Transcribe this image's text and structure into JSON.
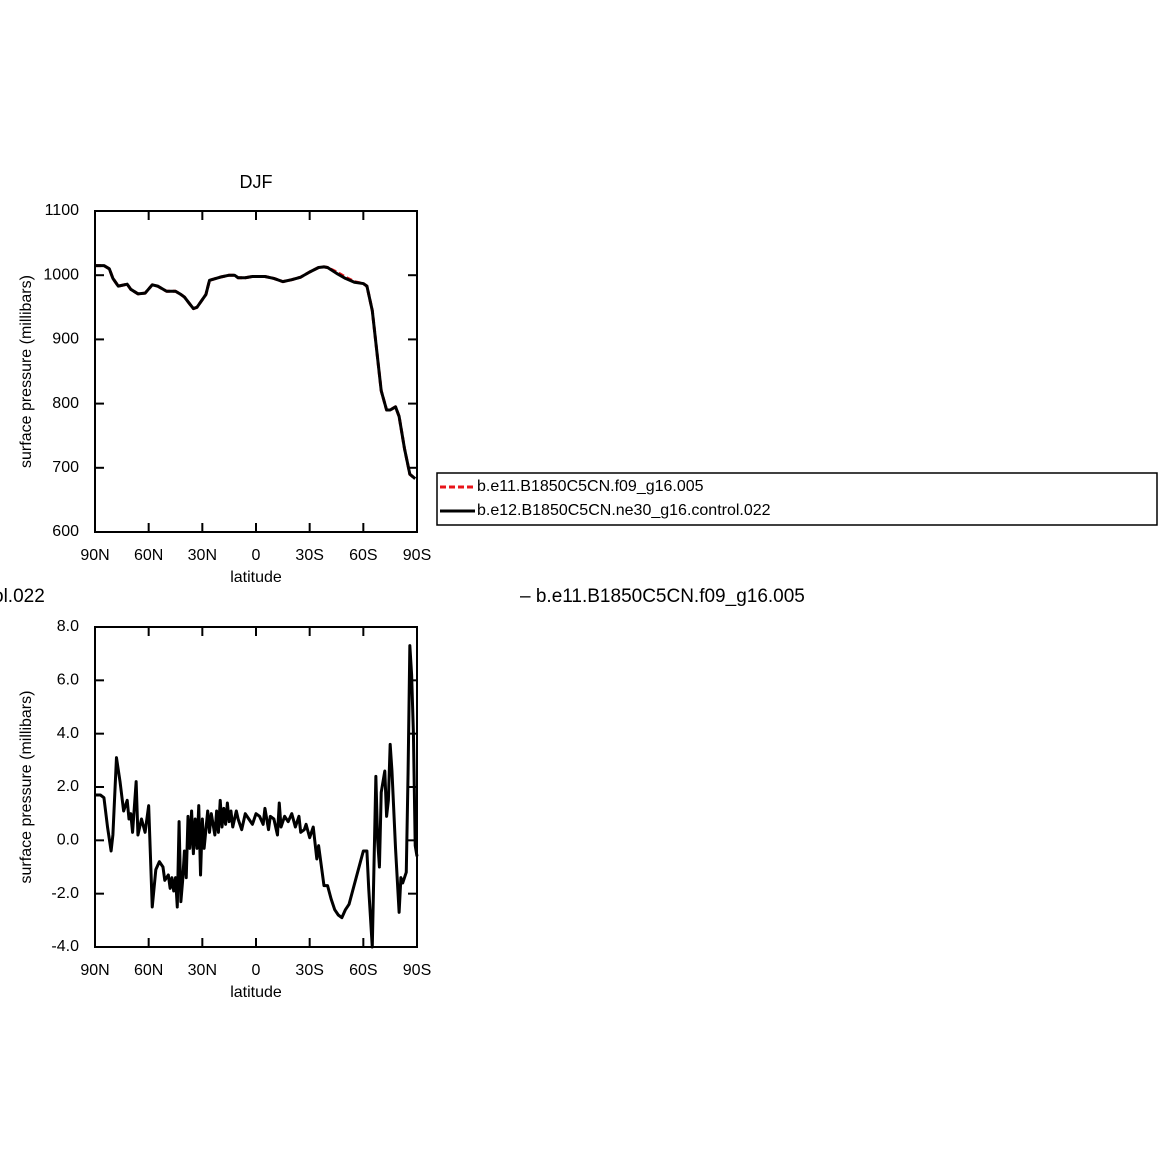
{
  "chart_data": [
    {
      "type": "line",
      "title": "DJF",
      "xlabel": "latitude",
      "ylabel": "surface pressure (millibars)",
      "xlim": [
        90,
        -90
      ],
      "ylim": [
        600,
        1100
      ],
      "xticks": [
        {
          "value": 90,
          "label": "90N"
        },
        {
          "value": 60,
          "label": "60N"
        },
        {
          "value": 30,
          "label": "30N"
        },
        0,
        {
          "value": -30,
          "label": "30S"
        },
        {
          "value": -60,
          "label": "60S"
        },
        {
          "value": -90,
          "label": "90S"
        }
      ],
      "yticks": [
        600,
        700,
        800,
        900,
        1000,
        1100
      ],
      "legend": "right",
      "x": [
        90,
        85,
        82,
        80,
        77,
        72,
        70,
        66,
        62,
        58,
        55,
        50,
        45,
        42,
        40,
        37,
        35,
        33,
        30,
        28,
        26,
        20,
        15,
        12,
        10,
        6,
        2,
        0,
        -5,
        -10,
        -15,
        -20,
        -25,
        -30,
        -35,
        -38,
        -40,
        -45,
        -50,
        -55,
        -60,
        -62,
        -65,
        -68,
        -70,
        -73,
        -75,
        -78,
        -80,
        -83,
        -86,
        -89
      ],
      "series": [
        {
          "name": "b.e11.B1850C5CN.f09_g16.005",
          "color": "#e8141a",
          "line_style": "dashed",
          "values": [
            1015,
            1015,
            1010,
            995,
            983,
            986,
            978,
            971,
            972,
            985,
            983,
            975,
            975,
            970,
            966,
            955,
            948,
            950,
            962,
            970,
            992,
            997,
            1000,
            1000,
            996,
            996,
            998,
            998,
            998,
            995,
            990,
            993,
            997,
            1005,
            1012,
            1013,
            1012,
            1005,
            997,
            990,
            987,
            983,
            945,
            870,
            820,
            790,
            790,
            795,
            780,
            730,
            690,
            683
          ]
        },
        {
          "name": "b.e12.B1850C5CN.ne30_g16.control.022",
          "color": "#000000",
          "line_style": "solid",
          "values": [
            1015,
            1015,
            1010,
            995,
            983,
            986,
            978,
            971,
            972,
            985,
            983,
            975,
            975,
            970,
            966,
            955,
            948,
            950,
            962,
            970,
            992,
            997,
            1000,
            1000,
            996,
            996,
            998,
            998,
            998,
            995,
            990,
            993,
            997,
            1005,
            1012,
            1013,
            1012,
            1003,
            995,
            989,
            987,
            983,
            945,
            870,
            820,
            790,
            790,
            795,
            780,
            730,
            690,
            683
          ]
        }
      ]
    },
    {
      "type": "line",
      "left_title": "ol.022",
      "right_title": "– b.e11.B1850C5CN.f09_g16.005",
      "xlabel": "latitude",
      "ylabel": "surface pressure (millibars)",
      "xlim": [
        90,
        -90
      ],
      "ylim": [
        -4,
        8
      ],
      "xticks": [
        {
          "value": 90,
          "label": "90N"
        },
        {
          "value": 60,
          "label": "60N"
        },
        {
          "value": 30,
          "label": "30N"
        },
        0,
        {
          "value": -30,
          "label": "30S"
        },
        {
          "value": -60,
          "label": "60S"
        },
        {
          "value": -90,
          "label": "90S"
        }
      ],
      "yticks": [
        {
          "value": -4,
          "label": "-4.0"
        },
        {
          "value": -2,
          "label": "-2.0"
        },
        {
          "value": 0,
          "label": "0.0"
        },
        {
          "value": 2,
          "label": "2.0"
        },
        {
          "value": 4,
          "label": "4.0"
        },
        {
          "value": 6,
          "label": "6.0"
        },
        {
          "value": 8,
          "label": "8.0"
        }
      ],
      "x": [
        90,
        87,
        85,
        83,
        81,
        80,
        78,
        76,
        74,
        72,
        71,
        70,
        69,
        67,
        66,
        64,
        62,
        60,
        58,
        56,
        54,
        52,
        51,
        49,
        48,
        47,
        46,
        45,
        44,
        43,
        42,
        41,
        40,
        39,
        38,
        37,
        36,
        35,
        34,
        33,
        32,
        31,
        30,
        29,
        27,
        26,
        25,
        23,
        22,
        21,
        20,
        19,
        18,
        17,
        16,
        15,
        14,
        13,
        11,
        10,
        8,
        6,
        4,
        2,
        0,
        -2,
        -4,
        -5,
        -7,
        -8,
        -10,
        -12,
        -13,
        -14,
        -16,
        -18,
        -20,
        -22,
        -24,
        -25,
        -27,
        -28,
        -30,
        -32,
        -34,
        -35,
        -37,
        -38,
        -40,
        -42,
        -44,
        -46,
        -48,
        -50,
        -52,
        -54,
        -56,
        -60,
        -62,
        -63,
        -65,
        -67,
        -68,
        -69,
        -70,
        -72,
        -73,
        -74,
        -75,
        -76,
        -78,
        -80,
        -81,
        -82,
        -84,
        -85,
        -86,
        -87,
        -88,
        -89,
        -90
      ],
      "series": [
        {
          "color": "#000000",
          "line_style": "solid",
          "values": [
            1.7,
            1.7,
            1.6,
            0.5,
            -0.4,
            0.2,
            3.1,
            2.2,
            1.1,
            1.5,
            0.8,
            1.0,
            0.3,
            2.2,
            0.2,
            0.8,
            0.3,
            1.3,
            -2.5,
            -1.1,
            -0.8,
            -1.0,
            -1.5,
            -1.3,
            -1.8,
            -1.4,
            -1.9,
            -1.4,
            -2.5,
            0.7,
            -2.3,
            -1.5,
            -0.4,
            -1.4,
            0.9,
            -0.3,
            1.1,
            -0.5,
            0.8,
            -0.3,
            1.3,
            -1.3,
            0.8,
            -0.3,
            1.1,
            0.3,
            1.0,
            0.2,
            1.1,
            0.3,
            1.5,
            0.5,
            1.2,
            0.6,
            1.4,
            0.7,
            1.1,
            0.5,
            1.1,
            0.8,
            0.4,
            1.0,
            0.8,
            0.6,
            1.0,
            0.9,
            0.6,
            1.2,
            0.4,
            0.9,
            0.8,
            0.2,
            1.4,
            0.5,
            0.9,
            0.7,
            1.0,
            0.5,
            0.9,
            0.3,
            0.4,
            0.6,
            0.1,
            0.5,
            -0.7,
            -0.2,
            -1.2,
            -1.7,
            -1.7,
            -2.2,
            -2.6,
            -2.8,
            -2.9,
            -2.6,
            -2.4,
            -1.9,
            -1.4,
            -0.4,
            -0.4,
            -1.8,
            -4,
            2.4,
            0,
            -1.0,
            1.8,
            2.6,
            0.9,
            1.5,
            3.6,
            2.6,
            -0.3,
            -2.7,
            -1.4,
            -1.6,
            -1.2,
            2.5,
            7.3,
            6.2,
            4.0,
            -0.2,
            -0.6
          ]
        }
      ]
    }
  ]
}
